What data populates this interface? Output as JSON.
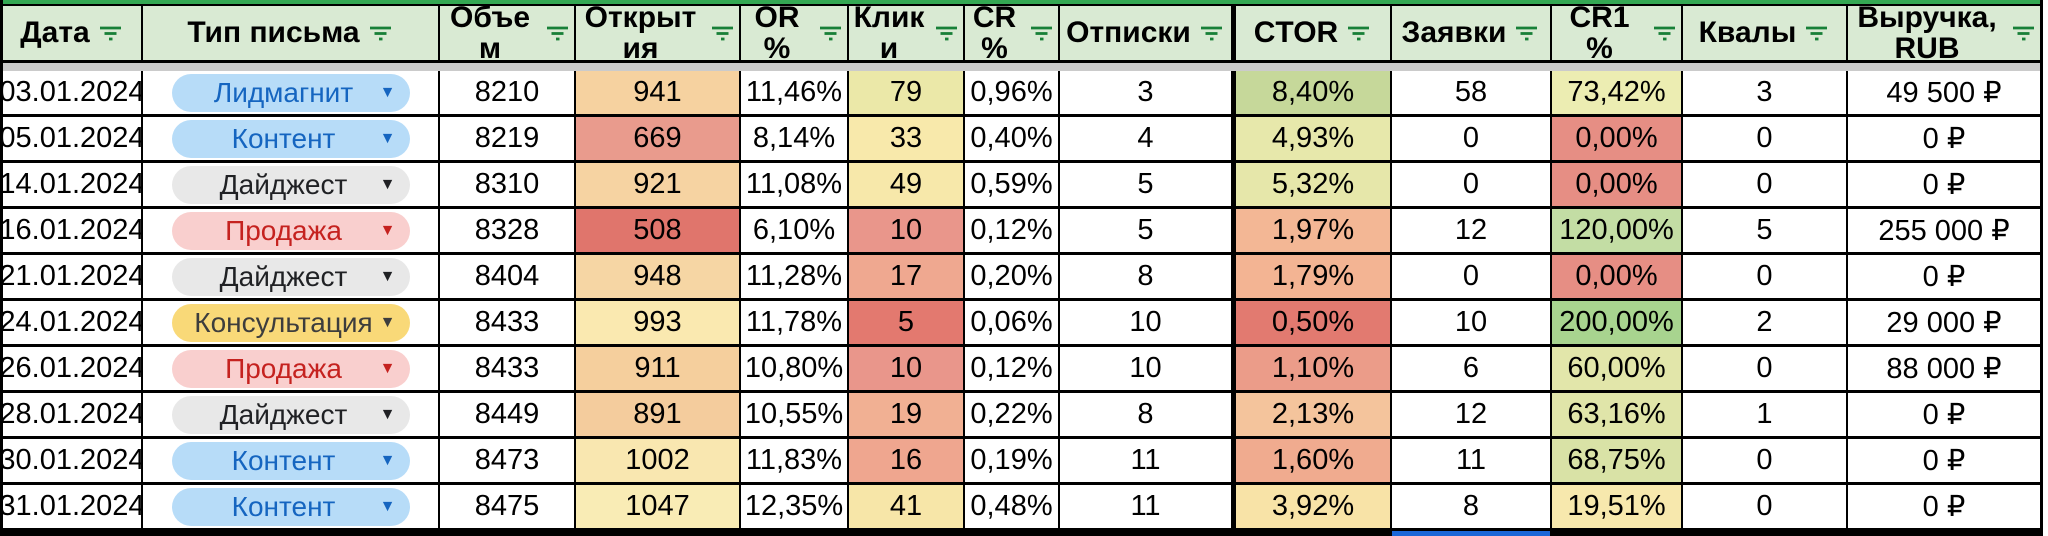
{
  "sheet": {
    "dropdown_arrow": "▼",
    "filter_icon": {
      "color": "#188038"
    },
    "colors": {
      "header_bg": "#d9ead3",
      "top_strip": "#34a853",
      "frozen_gap": "#cbcbcb",
      "selection": "#1a67d8"
    },
    "pill_variants": {
      "blue": {
        "bg": "#b7dcf8",
        "fg": "#1565c0"
      },
      "gray": {
        "bg": "#e8e8e8",
        "fg": "#202124"
      },
      "red": {
        "bg": "#f9cfce",
        "fg": "#c5221f"
      },
      "yellow": {
        "bg": "#f9d978",
        "fg": "#3d3d3d"
      }
    },
    "columns": [
      {
        "id": "date",
        "label": "Дата"
      },
      {
        "id": "type",
        "label": "Тип письма"
      },
      {
        "id": "volume",
        "label": "Объем"
      },
      {
        "id": "opens",
        "label": "Открытия"
      },
      {
        "id": "or",
        "label": "OR %"
      },
      {
        "id": "clicks",
        "label": "Клики"
      },
      {
        "id": "cr",
        "label": "CR %"
      },
      {
        "id": "unsubs",
        "label": "Отписки"
      },
      {
        "id": "ctor",
        "label": "CTOR"
      },
      {
        "id": "leads",
        "label": "Заявки"
      },
      {
        "id": "cr1",
        "label": "CR1 %"
      },
      {
        "id": "quals",
        "label": "Квалы"
      },
      {
        "id": "revenue",
        "label": "Выручка, RUB"
      }
    ],
    "rows": [
      {
        "date": "03.01.2024",
        "type": {
          "label": "Лидмагнит",
          "variant": "blue"
        },
        "volume": "8210",
        "opens": {
          "v": "941",
          "bg": "#f6d2a0"
        },
        "or": "11,46%",
        "clicks": {
          "v": "79",
          "bg": "#ebe8a8"
        },
        "cr": "0,96%",
        "unsubs": "3",
        "ctor": {
          "v": "8,40%",
          "bg": "#c6d89a"
        },
        "leads": "58",
        "cr1": {
          "v": "73,42%",
          "bg": "#ecedb2"
        },
        "quals": "3",
        "revenue": "49 500 ₽"
      },
      {
        "date": "05.01.2024",
        "type": {
          "label": "Контент",
          "variant": "blue"
        },
        "volume": "8219",
        "opens": {
          "v": "669",
          "bg": "#e99b8d"
        },
        "or": "8,14%",
        "clicks": {
          "v": "33",
          "bg": "#f8e9ab"
        },
        "cr": "0,40%",
        "unsubs": "4",
        "ctor": {
          "v": "4,93%",
          "bg": "#e7e8ab"
        },
        "leads": "0",
        "cr1": {
          "v": "0,00%",
          "bg": "#e68e84"
        },
        "quals": "0",
        "revenue": "0 ₽"
      },
      {
        "date": "14.01.2024",
        "type": {
          "label": "Дайджест",
          "variant": "gray"
        },
        "volume": "8310",
        "opens": {
          "v": "921",
          "bg": "#f6d3a2"
        },
        "or": "11,08%",
        "clicks": {
          "v": "49",
          "bg": "#f7e8aa"
        },
        "cr": "0,59%",
        "unsubs": "5",
        "ctor": {
          "v": "5,32%",
          "bg": "#e6e7aa"
        },
        "leads": "0",
        "cr1": {
          "v": "0,00%",
          "bg": "#e68e84"
        },
        "quals": "0",
        "revenue": "0 ₽"
      },
      {
        "date": "16.01.2024",
        "type": {
          "label": "Продажа",
          "variant": "red"
        },
        "volume": "8328",
        "opens": {
          "v": "508",
          "bg": "#e0756c"
        },
        "or": "6,10%",
        "clicks": {
          "v": "10",
          "bg": "#e9968b"
        },
        "cr": "0,12%",
        "unsubs": "5",
        "ctor": {
          "v": "1,97%",
          "bg": "#f3b795"
        },
        "leads": "12",
        "cr1": {
          "v": "120,00%",
          "bg": "#c3dda4"
        },
        "quals": "5",
        "revenue": "255 000 ₽"
      },
      {
        "date": "21.01.2024",
        "type": {
          "label": "Дайджест",
          "variant": "gray"
        },
        "volume": "8404",
        "opens": {
          "v": "948",
          "bg": "#f6d6a4"
        },
        "or": "11,28%",
        "clicks": {
          "v": "17",
          "bg": "#efa890"
        },
        "cr": "0,20%",
        "unsubs": "8",
        "ctor": {
          "v": "1,79%",
          "bg": "#f3b493"
        },
        "leads": "0",
        "cr1": {
          "v": "0,00%",
          "bg": "#e68e84"
        },
        "quals": "0",
        "revenue": "0 ₽"
      },
      {
        "date": "24.01.2024",
        "type": {
          "label": "Консультация",
          "variant": "yellow"
        },
        "volume": "8433",
        "opens": {
          "v": "993",
          "bg": "#fae9b0"
        },
        "or": "11,78%",
        "clicks": {
          "v": "5",
          "bg": "#e3796f"
        },
        "cr": "0,06%",
        "unsubs": "10",
        "ctor": {
          "v": "0,50%",
          "bg": "#e27a70"
        },
        "leads": "10",
        "cr1": {
          "v": "200,00%",
          "bg": "#a8d48f"
        },
        "quals": "2",
        "revenue": "29 000 ₽"
      },
      {
        "date": "26.01.2024",
        "type": {
          "label": "Продажа",
          "variant": "red"
        },
        "volume": "8433",
        "opens": {
          "v": "911",
          "bg": "#f5cf9d"
        },
        "or": "10,80%",
        "clicks": {
          "v": "10",
          "bg": "#e9968b"
        },
        "cr": "0,12%",
        "unsubs": "10",
        "ctor": {
          "v": "1,10%",
          "bg": "#eb9c89"
        },
        "leads": "6",
        "cr1": {
          "v": "60,00%",
          "bg": "#e2e6aa"
        },
        "quals": "0",
        "revenue": "88 000 ₽"
      },
      {
        "date": "28.01.2024",
        "type": {
          "label": "Дайджест",
          "variant": "gray"
        },
        "volume": "8449",
        "opens": {
          "v": "891",
          "bg": "#f4cc9d"
        },
        "or": "10,55%",
        "clicks": {
          "v": "19",
          "bg": "#f1b093"
        },
        "cr": "0,22%",
        "unsubs": "8",
        "ctor": {
          "v": "2,13%",
          "bg": "#f4c49c"
        },
        "leads": "12",
        "cr1": {
          "v": "63,16%",
          "bg": "#e0e5a9"
        },
        "quals": "1",
        "revenue": "0 ₽"
      },
      {
        "date": "30.01.2024",
        "type": {
          "label": "Контент",
          "variant": "blue"
        },
        "volume": "8473",
        "opens": {
          "v": "1002",
          "bg": "#f9e7b0"
        },
        "or": "11,83%",
        "clicks": {
          "v": "16",
          "bg": "#efa68f"
        },
        "cr": "0,19%",
        "unsubs": "11",
        "ctor": {
          "v": "1,60%",
          "bg": "#f0ab8f"
        },
        "leads": "11",
        "cr1": {
          "v": "68,75%",
          "bg": "#d9e2a6"
        },
        "quals": "0",
        "revenue": "0 ₽"
      },
      {
        "date": "31.01.2024",
        "type": {
          "label": "Контент",
          "variant": "blue"
        },
        "volume": "8475",
        "opens": {
          "v": "1047",
          "bg": "#f9ecb5"
        },
        "or": "12,35%",
        "clicks": {
          "v": "41",
          "bg": "#f7e6a8"
        },
        "cr": "0,48%",
        "unsubs": "11",
        "ctor": {
          "v": "3,92%",
          "bg": "#f8e3a7"
        },
        "leads": "8",
        "cr1": {
          "v": "19,51%",
          "bg": "#f7e8ad"
        },
        "quals": "0",
        "revenue": "0 ₽"
      }
    ]
  }
}
